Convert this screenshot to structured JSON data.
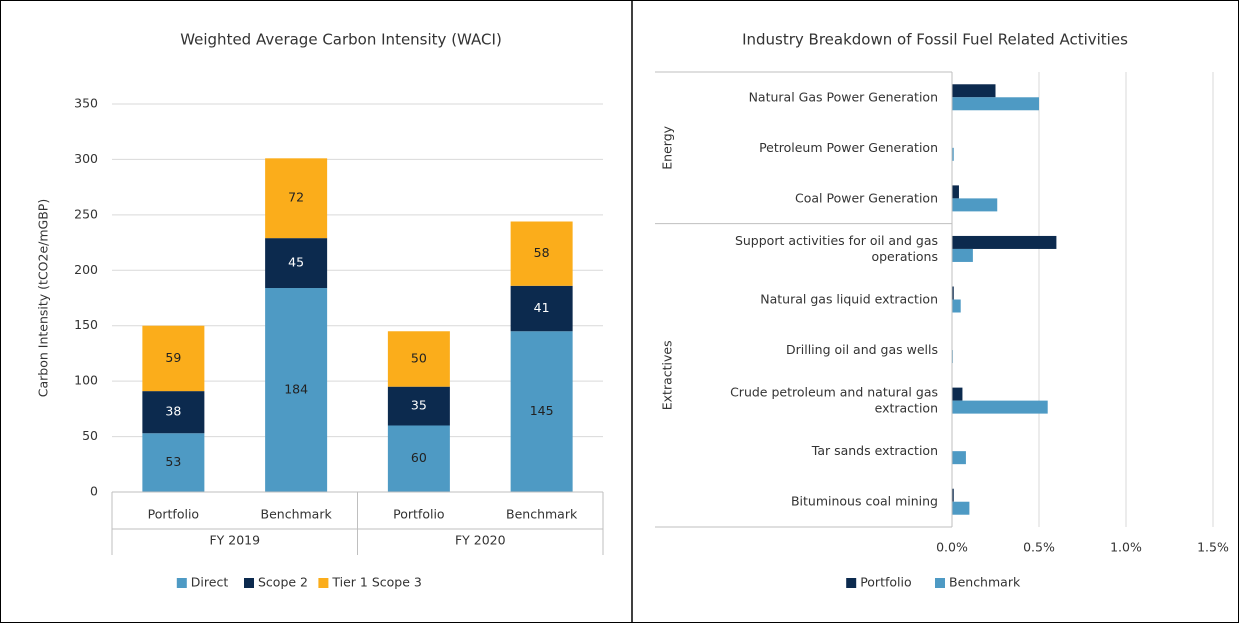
{
  "chart_data": [
    {
      "type": "stacked_bar",
      "title": "Weighted Average Carbon Intensity (WACI)",
      "ylabel": "Carbon Intensity (tCO2e/mGBP)",
      "groups": [
        {
          "name": "FY 2019",
          "categories": [
            "Portfolio",
            "Benchmark"
          ]
        },
        {
          "name": "FY 2020",
          "categories": [
            "Portfolio",
            "Benchmark"
          ]
        }
      ],
      "series": [
        {
          "name": "Direct",
          "color": "#4e9ac4",
          "values": [
            53,
            184,
            60,
            145
          ]
        },
        {
          "name": "Scope 2",
          "color": "#0c2a4e",
          "values": [
            38,
            45,
            35,
            41
          ]
        },
        {
          "name": "Tier 1 Scope 3",
          "color": "#fbad1b",
          "values": [
            59,
            72,
            50,
            58
          ]
        }
      ],
      "ylim": [
        0,
        350
      ],
      "yticks": [
        0,
        50,
        100,
        150,
        200,
        250,
        300,
        350
      ],
      "grid": true,
      "legend": "bottom"
    },
    {
      "type": "hbar",
      "title": "Industry Breakdown of Fossil Fuel Related Activities",
      "groups": [
        {
          "name": "Energy",
          "categories": [
            "Natural Gas Power Generation",
            "Petroleum Power Generation",
            "Coal Power Generation"
          ]
        },
        {
          "name": "Extractives",
          "categories": [
            "Support activities for oil and gas operations",
            "Natural gas liquid extraction",
            "Drilling oil and gas wells",
            "Crude petroleum and natural gas extraction",
            "Tar sands extraction",
            "Bituminous coal mining"
          ]
        }
      ],
      "series": [
        {
          "name": "Portfolio",
          "color": "#0c2a4e",
          "values": [
            0.25,
            0,
            0.04,
            0.6,
            0.01,
            0,
            0.06,
            0,
            0.01
          ]
        },
        {
          "name": "Benchmark",
          "color": "#4e9ac4",
          "values": [
            0.5,
            0.01,
            0.26,
            0.12,
            0.05,
            0.005,
            0.55,
            0.08,
            0.1
          ]
        }
      ],
      "xlim": [
        0,
        1.5
      ],
      "xticks": [
        {
          "value": 0,
          "label": "0.0%"
        },
        {
          "value": 0.5,
          "label": "0.5%"
        },
        {
          "value": 1,
          "label": "1.0%"
        },
        {
          "value": 1.5,
          "label": "1.5%"
        }
      ],
      "grid": true,
      "legend": "bottom"
    }
  ]
}
